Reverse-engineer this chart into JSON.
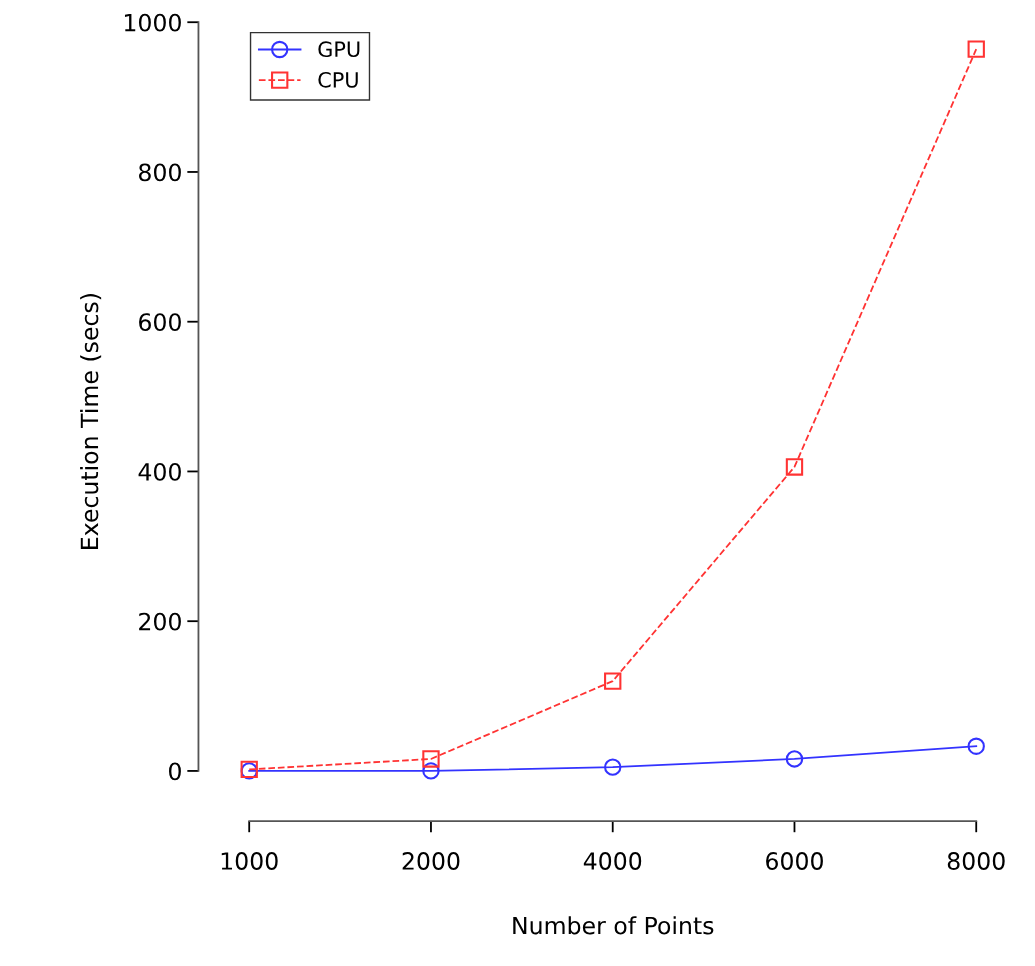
{
  "chart_data": {
    "type": "line",
    "xlabel": "Number of Points",
    "ylabel": "Execution Time (secs)",
    "categories": [
      "1000",
      "2000",
      "4000",
      "6000",
      "8000"
    ],
    "series": [
      {
        "name": "GPU",
        "color": "#3333ff",
        "values": [
          0,
          0,
          5,
          16,
          33
        ],
        "marker": "circle",
        "line_style": "solid"
      },
      {
        "name": "CPU",
        "color": "#ff3333",
        "values": [
          2,
          16,
          120,
          406,
          964
        ],
        "marker": "square",
        "line_style": "dashed"
      }
    ],
    "ylim": [
      -67,
      1000
    ],
    "yticks": [
      0,
      200,
      400,
      600,
      800,
      1000
    ],
    "grid": false,
    "legend": "top left"
  }
}
